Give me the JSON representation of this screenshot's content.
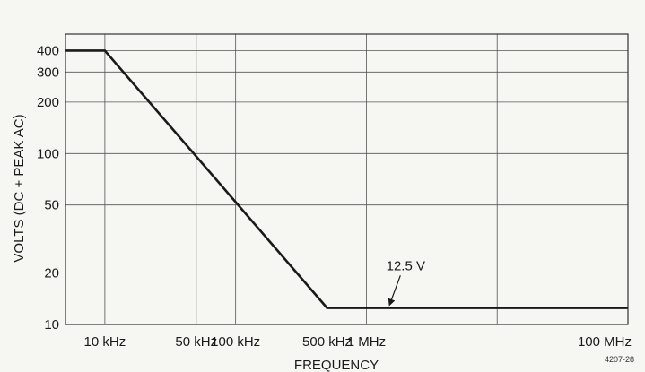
{
  "chart_data": {
    "type": "line",
    "title": "",
    "xlabel": "FREQUENCY",
    "ylabel": "VOLTS (DC + PEAK AC)",
    "x_scale": "log",
    "y_scale": "log",
    "xlim": [
      5000,
      100000000
    ],
    "ylim": [
      10,
      500
    ],
    "grid": true,
    "x_ticks": [
      {
        "value": 10000,
        "label": "10 kHz"
      },
      {
        "value": 50000,
        "label": "50 kHz"
      },
      {
        "value": 100000,
        "label": "100 kHz"
      },
      {
        "value": 500000,
        "label": "500 kHz"
      },
      {
        "value": 1000000,
        "label": "1 MHz"
      },
      {
        "value": 100000000,
        "label": "100 MHz"
      }
    ],
    "x_gridlines": [
      10000,
      50000,
      100000,
      500000,
      1000000,
      10000000
    ],
    "y_ticks": [
      {
        "value": 10,
        "label": "10"
      },
      {
        "value": 20,
        "label": "20"
      },
      {
        "value": 50,
        "label": "50"
      },
      {
        "value": 100,
        "label": "100"
      },
      {
        "value": 200,
        "label": "200"
      },
      {
        "value": 300,
        "label": "300"
      },
      {
        "value": 400,
        "label": "400"
      }
    ],
    "y_gridlines": [
      10,
      20,
      50,
      100,
      200,
      300,
      400
    ],
    "series": [
      {
        "x": [
          5000,
          10000,
          500000,
          100000000
        ],
        "y": [
          400,
          400,
          12.5,
          12.5
        ]
      }
    ],
    "annotations": [
      {
        "text": "12.5 V",
        "x": 2000000,
        "y": 18,
        "arrow_to": {
          "x": 1500000,
          "y": 12.5
        }
      }
    ],
    "footnote": "4207-28"
  }
}
